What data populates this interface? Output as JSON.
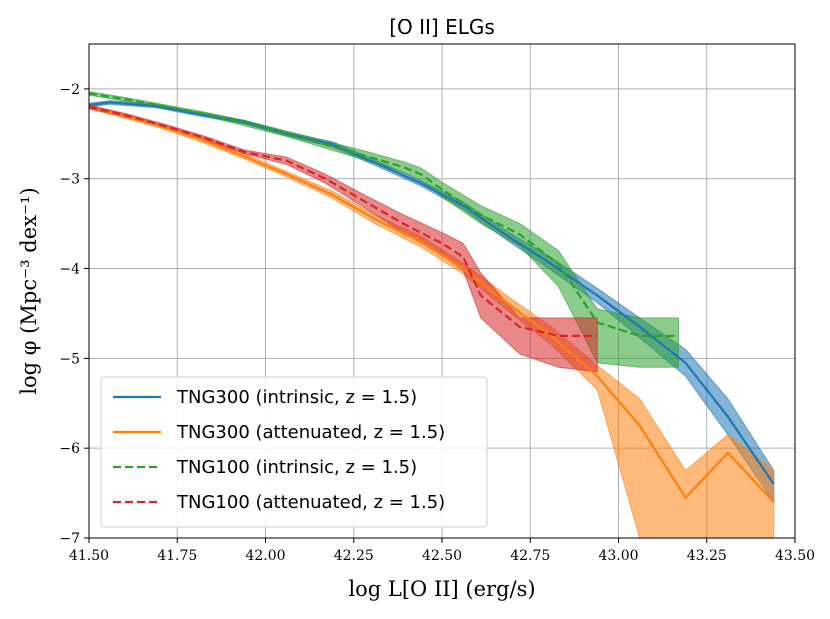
{
  "chart_data": {
    "type": "line",
    "title": "[O II] ELGs",
    "xlabel": "log L[O II] (erg/s)",
    "ylabel": "log φ (Mpc⁻³ dex⁻¹)",
    "xlim": [
      41.5,
      43.5
    ],
    "ylim": [
      -7,
      -1.5
    ],
    "grid": true,
    "legend_position": "lower-left",
    "x_ticks": [
      41.5,
      41.75,
      42.0,
      42.25,
      42.5,
      42.75,
      43.0,
      43.25,
      43.5
    ],
    "x_tick_labels": [
      "41.50",
      "41.75",
      "42.00",
      "42.25",
      "42.50",
      "42.75",
      "43.00",
      "43.25",
      "43.50"
    ],
    "y_ticks": [
      -7,
      -6,
      -5,
      -4,
      -3,
      -2
    ],
    "y_tick_labels": [
      "−7",
      "−6",
      "−5",
      "−4",
      "−3",
      "−2"
    ],
    "series": [
      {
        "name": "TNG300 (intrinsic, z = 1.5)",
        "color": "#1f77b4",
        "style": "solid",
        "x": [
          41.5,
          41.56,
          41.69,
          41.81,
          41.94,
          42.06,
          42.19,
          42.31,
          42.44,
          42.56,
          42.69,
          42.81,
          42.94,
          43.06,
          43.19,
          43.31,
          43.44
        ],
        "y": [
          -2.18,
          -2.15,
          -2.19,
          -2.28,
          -2.37,
          -2.5,
          -2.62,
          -2.82,
          -3.05,
          -3.3,
          -3.65,
          -3.95,
          -4.3,
          -4.65,
          -5.05,
          -5.65,
          -6.4
        ],
        "lower": [
          -2.2,
          -2.17,
          -2.21,
          -2.3,
          -2.39,
          -2.52,
          -2.65,
          -2.85,
          -3.08,
          -3.34,
          -3.7,
          -4.02,
          -4.38,
          -4.77,
          -5.2,
          -5.85,
          -6.6
        ],
        "upper": [
          -2.16,
          -2.13,
          -2.17,
          -2.26,
          -2.35,
          -2.48,
          -2.59,
          -2.79,
          -3.02,
          -3.26,
          -3.6,
          -3.88,
          -4.22,
          -4.55,
          -4.9,
          -5.45,
          -6.25
        ]
      },
      {
        "name": "TNG300 (attenuated, z = 1.5)",
        "color": "#ff7f0e",
        "style": "solid",
        "x": [
          41.5,
          41.56,
          41.69,
          41.81,
          41.94,
          42.06,
          42.19,
          42.31,
          42.44,
          42.56,
          42.69,
          42.81,
          42.94,
          43.06,
          43.19,
          43.31,
          43.44
        ],
        "y": [
          -2.2,
          -2.26,
          -2.4,
          -2.55,
          -2.75,
          -2.95,
          -3.18,
          -3.45,
          -3.7,
          -4.0,
          -4.4,
          -4.75,
          -5.2,
          -5.75,
          -6.55,
          -6.05,
          -6.6
        ],
        "lower": [
          -2.22,
          -2.28,
          -2.42,
          -2.58,
          -2.78,
          -2.98,
          -3.22,
          -3.5,
          -3.76,
          -4.06,
          -4.48,
          -4.85,
          -5.35,
          -7.0,
          -7.0,
          -7.0,
          -7.0
        ],
        "upper": [
          -2.18,
          -2.24,
          -2.38,
          -2.52,
          -2.72,
          -2.92,
          -3.14,
          -3.4,
          -3.64,
          -3.94,
          -4.32,
          -4.65,
          -5.08,
          -5.45,
          -6.25,
          -5.85,
          -6.25
        ]
      },
      {
        "name": "TNG100 (intrinsic, z = 1.5)",
        "color": "#2ca02c",
        "style": "dashed",
        "x": [
          41.5,
          41.61,
          41.72,
          41.83,
          41.94,
          42.06,
          42.17,
          42.28,
          42.39,
          42.44,
          42.5,
          42.61,
          42.72,
          42.83,
          42.94,
          43.06,
          43.17
        ],
        "y": [
          -2.05,
          -2.12,
          -2.2,
          -2.28,
          -2.38,
          -2.5,
          -2.62,
          -2.74,
          -2.87,
          -2.95,
          -3.12,
          -3.4,
          -3.62,
          -3.95,
          -4.6,
          -4.75,
          -4.75
        ],
        "lower": [
          -2.07,
          -2.14,
          -2.22,
          -2.3,
          -2.41,
          -2.53,
          -2.66,
          -2.79,
          -2.93,
          -3.02,
          -3.2,
          -3.5,
          -3.75,
          -4.2,
          -5.05,
          -5.1,
          -5.1
        ],
        "upper": [
          -2.03,
          -2.1,
          -2.18,
          -2.26,
          -2.35,
          -2.47,
          -2.58,
          -2.69,
          -2.81,
          -2.88,
          -3.04,
          -3.3,
          -3.5,
          -3.8,
          -4.45,
          -4.55,
          -4.55
        ]
      },
      {
        "name": "TNG100 (attenuated, z = 1.5)",
        "color": "#d62728",
        "style": "dashed",
        "x": [
          41.5,
          41.61,
          41.72,
          41.83,
          41.94,
          42.06,
          42.17,
          42.28,
          42.39,
          42.5,
          42.56,
          42.61,
          42.72,
          42.83,
          42.94
        ],
        "y": [
          -2.2,
          -2.3,
          -2.42,
          -2.55,
          -2.7,
          -2.8,
          -3.0,
          -3.25,
          -3.5,
          -3.72,
          -3.87,
          -4.3,
          -4.65,
          -4.75,
          -4.75
        ],
        "lower": [
          -2.22,
          -2.32,
          -2.44,
          -2.57,
          -2.72,
          -2.84,
          -3.05,
          -3.32,
          -3.6,
          -3.85,
          -4.02,
          -4.55,
          -4.95,
          -5.1,
          -5.15
        ],
        "upper": [
          -2.18,
          -2.28,
          -2.4,
          -2.53,
          -2.68,
          -2.76,
          -2.95,
          -3.18,
          -3.4,
          -3.6,
          -3.72,
          -4.05,
          -4.55,
          -4.55,
          -4.55
        ]
      }
    ]
  }
}
